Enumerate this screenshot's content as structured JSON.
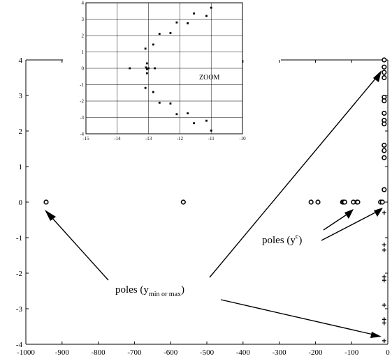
{
  "chart_data": [
    {
      "type": "scatter",
      "title": "",
      "xlabel": "",
      "ylabel": "",
      "xlim": [
        -1000,
        0
      ],
      "ylim": [
        -4,
        4
      ],
      "x_ticks": [
        "-1000",
        "-900",
        "-800",
        "-700",
        "-600",
        "-500",
        "-400",
        "-300",
        "-200",
        "-100",
        "0"
      ],
      "y_ticks": [
        "-4",
        "-3",
        "-2",
        "-1",
        "0",
        "1",
        "2",
        "3",
        "4"
      ],
      "grid": false,
      "series": [
        {
          "name": "",
          "marker": "open-circle",
          "points": [
            [
              -944,
              0
            ],
            [
              -565,
              0
            ],
            [
              -212,
              0
            ],
            [
              -193,
              0
            ],
            [
              -125,
              0
            ],
            [
              -122,
              0
            ],
            [
              -119,
              0
            ],
            [
              -95,
              0
            ],
            [
              -85,
              0
            ],
            [
              -83,
              0
            ],
            [
              -20,
              0
            ],
            [
              -15,
              0
            ],
            [
              -10,
              4
            ],
            [
              -10,
              3.8
            ],
            [
              -10,
              3.65
            ],
            [
              -10,
              3.5
            ],
            [
              -10,
              2.95
            ],
            [
              -10,
              2.85
            ],
            [
              -10,
              2.5
            ],
            [
              -10,
              2.3
            ],
            [
              -10,
              2.2
            ],
            [
              -10,
              1.6
            ],
            [
              -10,
              1.45
            ],
            [
              -10,
              1.25
            ],
            [
              -10,
              0.35
            ]
          ]
        },
        {
          "name": "",
          "marker": "plus",
          "points": [
            [
              -10,
              -0.3
            ],
            [
              -10,
              -1.2
            ],
            [
              -10,
              -1.35
            ],
            [
              -10,
              -2.1
            ],
            [
              -10,
              -2.2
            ],
            [
              -10,
              -2.9
            ],
            [
              -10,
              -3.3
            ],
            [
              -10,
              -3.4
            ],
            [
              -10,
              -3.9
            ]
          ]
        }
      ],
      "annotations": {
        "poles_c_base": "poles (y",
        "poles_c_sup": "c",
        "poles_c_close": ")",
        "poles_mm_base": "poles (y",
        "poles_mm_sub": "min or max",
        "poles_mm_close": ")"
      }
    },
    {
      "type": "scatter",
      "title": "ZOOM",
      "xlabel": "",
      "ylabel": "",
      "xlim": [
        -15,
        -10
      ],
      "ylim": [
        -4,
        4
      ],
      "x_ticks": [
        "-15",
        "-14",
        "-13",
        "-12",
        "-11",
        "-10"
      ],
      "y_ticks": [
        "-4",
        "-3",
        "-2",
        "-1",
        "0",
        "1",
        "2",
        "3",
        "4"
      ],
      "grid": true,
      "points": [
        [
          -13.6,
          0
        ],
        [
          -13.05,
          0.3
        ],
        [
          -13.08,
          0.05
        ],
        [
          -13.05,
          -0.05
        ],
        [
          -13.0,
          0
        ],
        [
          -13.05,
          -0.3
        ],
        [
          -12.8,
          0
        ],
        [
          -13.1,
          1.2
        ],
        [
          -12.85,
          1.45
        ],
        [
          -12.65,
          2.1
        ],
        [
          -12.3,
          2.15
        ],
        [
          -12.1,
          2.8
        ],
        [
          -11.75,
          2.75
        ],
        [
          -11.55,
          3.35
        ],
        [
          -11.15,
          3.2
        ],
        [
          -11.0,
          3.7
        ],
        [
          -13.1,
          -1.2
        ],
        [
          -12.85,
          -1.45
        ],
        [
          -12.65,
          -2.1
        ],
        [
          -12.3,
          -2.15
        ],
        [
          -12.1,
          -2.8
        ],
        [
          -11.75,
          -2.75
        ],
        [
          -11.55,
          -3.35
        ],
        [
          -11.15,
          -3.2
        ],
        [
          -11.0,
          -3.8
        ]
      ]
    }
  ],
  "icons": [
    "arrow-icon"
  ]
}
